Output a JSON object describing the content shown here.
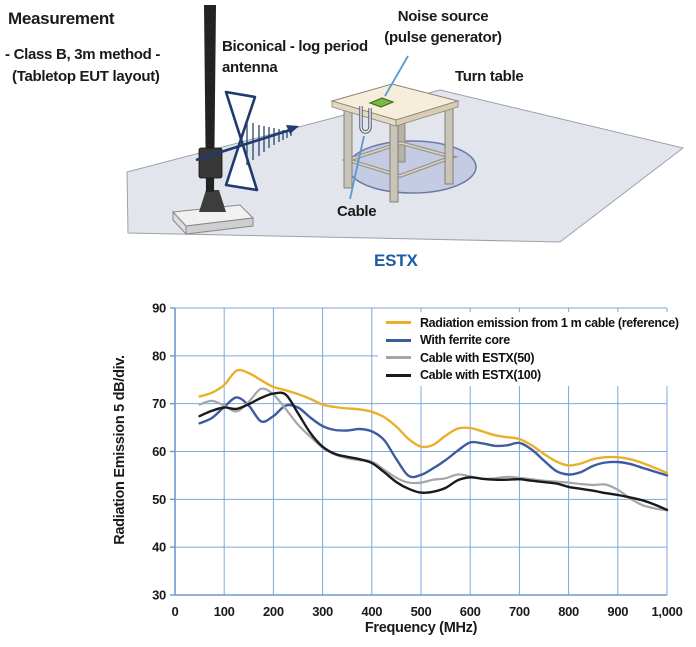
{
  "diagram": {
    "measurement_title": "Measurement",
    "measurement_line2": "- Class B, 3m method -",
    "measurement_line3": "(Tabletop EUT layout)",
    "antenna_label_line1": "Biconical - log period",
    "antenna_label_line2": "antenna",
    "noise_source_line1": "Noise source",
    "noise_source_line2": "(pulse generator)",
    "turn_table_label": "Turn table",
    "cable_label": "Cable",
    "leader_color": "#5B9BD5"
  },
  "product_label": {
    "text": "ESTX",
    "color": "#1B5AA5"
  },
  "chart_data": {
    "type": "line",
    "title": "",
    "xlabel": "Frequency (MHz)",
    "ylabel": "Radiation Emission 5 dB/div.",
    "xlim": [
      0,
      1000
    ],
    "ylim": [
      30,
      90
    ],
    "grid": true,
    "grid_color": "#7FA7DA",
    "axis_color": "#6F99CE",
    "legend_position": "top-right-inside",
    "x_tick_values": [
      0,
      100,
      200,
      300,
      400,
      500,
      600,
      700,
      800,
      900,
      1000
    ],
    "x_tick_labels": [
      "0",
      "100",
      "200",
      "300",
      "400",
      "500",
      "600",
      "700",
      "800",
      "900",
      "1,000"
    ],
    "y_tick_values": [
      30,
      40,
      50,
      60,
      70,
      80,
      90
    ],
    "y_tick_labels": [
      "30",
      "40",
      "50",
      "60",
      "70",
      "80",
      "90"
    ],
    "x": [
      50,
      75,
      100,
      125,
      150,
      175,
      200,
      225,
      250,
      275,
      300,
      325,
      350,
      375,
      400,
      425,
      450,
      475,
      500,
      525,
      550,
      575,
      600,
      625,
      650,
      675,
      700,
      725,
      750,
      775,
      800,
      825,
      850,
      875,
      900,
      925,
      950,
      975,
      1000
    ],
    "series": [
      {
        "name": "Radiation emission from 1 m cable (reference)",
        "color": "#EAB02C",
        "width": 2.4,
        "values": [
          71.5,
          72.3,
          73.9,
          76.9,
          76.4,
          74.9,
          73.5,
          72.8,
          72.0,
          71.0,
          69.8,
          69.3,
          69.0,
          68.8,
          68.3,
          67.2,
          65.2,
          62.6,
          61.0,
          61.4,
          63.3,
          64.8,
          64.9,
          64.2,
          63.4,
          63.0,
          62.6,
          61.3,
          59.5,
          57.9,
          57.1,
          57.5,
          58.4,
          58.8,
          58.8,
          58.4,
          57.6,
          56.6,
          55.5
        ]
      },
      {
        "name": "With ferrite core",
        "color": "#3D5C9F",
        "width": 2.4,
        "values": [
          65.9,
          67.0,
          69.3,
          71.3,
          69.6,
          66.3,
          67.4,
          69.6,
          69.2,
          67.1,
          65.3,
          64.5,
          64.4,
          64.7,
          64.2,
          62.4,
          58.4,
          54.9,
          55.1,
          56.5,
          58.2,
          60.2,
          61.9,
          61.7,
          61.2,
          61.3,
          61.8,
          60.4,
          58.1,
          55.9,
          55.2,
          55.7,
          57.0,
          57.7,
          57.8,
          57.4,
          56.6,
          55.8,
          55.0
        ]
      },
      {
        "name": "Cable with ESTX(50)",
        "color": "#A6A6A6",
        "width": 2.2,
        "values": [
          69.8,
          70.6,
          69.6,
          68.4,
          70.4,
          73.1,
          71.9,
          68.9,
          65.6,
          63.1,
          60.8,
          59.4,
          58.6,
          58.2,
          57.9,
          56.2,
          54.5,
          53.5,
          53.5,
          54.1,
          54.4,
          55.2,
          54.8,
          54.3,
          54.4,
          54.7,
          54.5,
          54.2,
          53.9,
          53.7,
          53.5,
          53.2,
          53.0,
          53.1,
          52.0,
          50.2,
          48.8,
          48.1,
          47.7
        ]
      },
      {
        "name": "Cable with ESTX(100)",
        "color": "#1A1A1A",
        "width": 2.4,
        "values": [
          67.4,
          68.5,
          69.2,
          68.9,
          69.9,
          71.2,
          72.1,
          71.9,
          68.0,
          63.9,
          61.0,
          59.5,
          58.9,
          58.4,
          57.6,
          55.7,
          53.6,
          52.2,
          51.4,
          51.6,
          52.4,
          54.0,
          54.6,
          54.3,
          54.1,
          54.1,
          54.2,
          53.9,
          53.6,
          53.3,
          52.6,
          52.2,
          51.8,
          51.3,
          50.9,
          50.4,
          49.8,
          48.9,
          47.8
        ]
      }
    ]
  }
}
